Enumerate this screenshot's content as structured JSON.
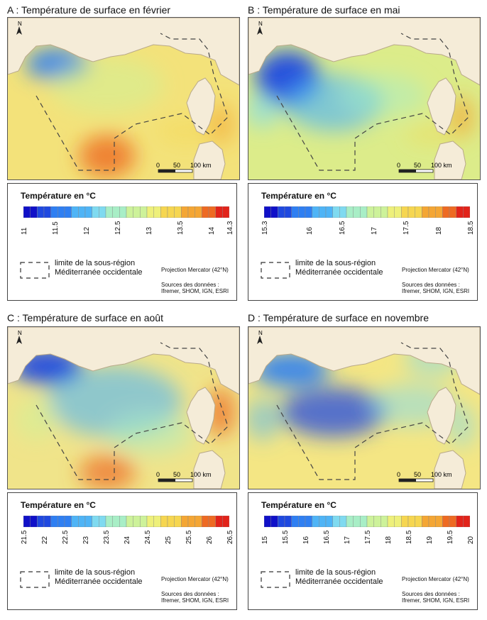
{
  "panels": [
    {
      "title": "A : Température de surface en février",
      "palette": "feb",
      "legend": {
        "title": "Température en °C",
        "ticks": [
          "11",
          "11.5",
          "12",
          "12.5",
          "13",
          "13.5",
          "14",
          "14.3"
        ],
        "tick_values": [
          11,
          11.5,
          12,
          12.5,
          13,
          13.5,
          14,
          14.3
        ],
        "min": 11,
        "max": 14.3,
        "limit_line1": "limite de la sous-région",
        "limit_line2": "Méditerranée occidentale",
        "projection": "Projection Mercator (42°N)",
        "sources": "Sources des données : Ifremer, SHOM, IGN, ESRI"
      }
    },
    {
      "title": "B : Température de surface en mai",
      "palette": "may",
      "legend": {
        "title": "Température en °C",
        "ticks": [
          "15.3",
          "16",
          "16.5",
          "17",
          "17.5",
          "18",
          "18.5"
        ],
        "tick_values": [
          15.3,
          16,
          16.5,
          17,
          17.5,
          18,
          18.5
        ],
        "min": 15.3,
        "max": 18.5,
        "limit_line1": "limite de la sous-région",
        "limit_line2": "Méditerranée occidentale",
        "projection": "Projection Mercator (42°N)",
        "sources": "Sources des données : Ifremer, SHOM, IGN, ESRI"
      }
    },
    {
      "title": "C : Température de surface en août",
      "palette": "aug",
      "legend": {
        "title": "Température en °C",
        "ticks": [
          "21.5",
          "22",
          "22.5",
          "23",
          "23.5",
          "24",
          "24.5",
          "25",
          "25.5",
          "26",
          "26.5"
        ],
        "tick_values": [
          21.5,
          22,
          22.5,
          23,
          23.5,
          24,
          24.5,
          25,
          25.5,
          26,
          26.5
        ],
        "min": 21.5,
        "max": 26.5,
        "limit_line1": "limite de la sous-région",
        "limit_line2": "Méditerranée occidentale",
        "projection": "Projection Mercator (42°N)",
        "sources": "Sources des données : Ifremer, SHOM, IGN, ESRI"
      }
    },
    {
      "title": "D : Température de surface en novembre",
      "palette": "nov",
      "legend": {
        "title": "Température en °C",
        "ticks": [
          "15",
          "15.5",
          "16",
          "16.5",
          "17",
          "17.5",
          "18",
          "18.5",
          "19",
          "19.5",
          "20"
        ],
        "tick_values": [
          15,
          15.5,
          16,
          16.5,
          17,
          17.5,
          18,
          18.5,
          19,
          19.5,
          20
        ],
        "min": 15,
        "max": 20,
        "limit_line1": "limite de la sous-région",
        "limit_line2": "Méditerranée occidentale",
        "projection": "Projection Mercator (42°N)",
        "sources": "Sources des données : Ifremer, SHOM, IGN, ESRI"
      }
    }
  ],
  "map_common": {
    "north_label": "N",
    "scale_labels": [
      "0",
      "50",
      "100 km"
    ]
  },
  "colors": {
    "land": "#f5ecd8",
    "coast": "#b9a98a",
    "limit_line": "#444444",
    "ramp": [
      "#1010c8",
      "#1f49e0",
      "#2f7ff2",
      "#4fb4f6",
      "#7fdaf0",
      "#a8eec6",
      "#cdf29a",
      "#eef07a",
      "#f6d650",
      "#f4a634",
      "#ee6a22",
      "#e2231a"
    ]
  }
}
